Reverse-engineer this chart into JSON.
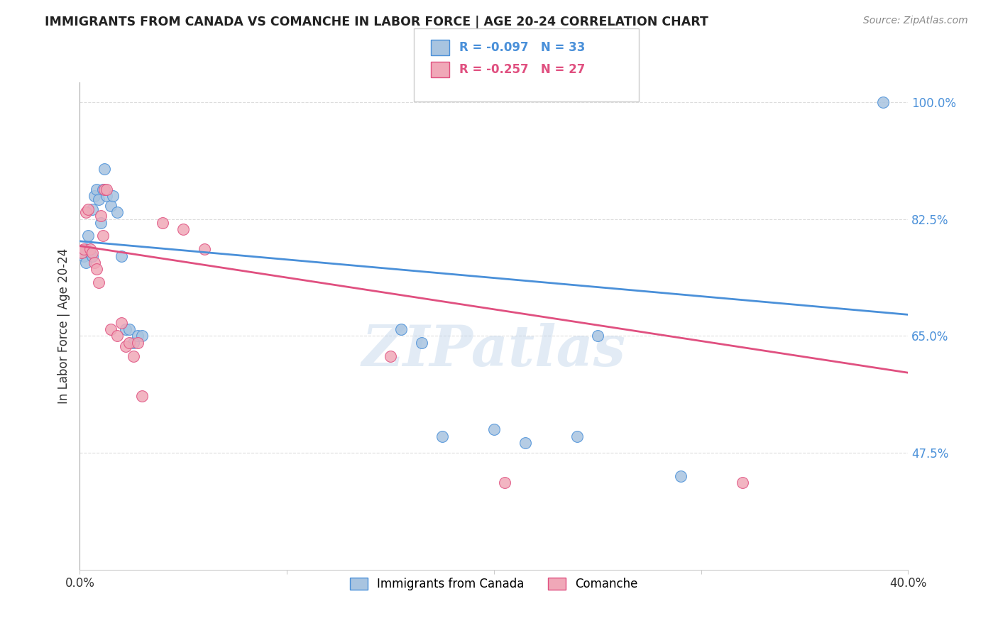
{
  "title": "IMMIGRANTS FROM CANADA VS COMANCHE IN LABOR FORCE | AGE 20-24 CORRELATION CHART",
  "source": "Source: ZipAtlas.com",
  "ylabel": "In Labor Force | Age 20-24",
  "xlim": [
    0.0,
    0.4
  ],
  "ylim": [
    0.3,
    1.03
  ],
  "x_tick_positions": [
    0.0,
    0.1,
    0.2,
    0.3,
    0.4
  ],
  "x_tick_labels": [
    "0.0%",
    "",
    "",
    "",
    "40.0%"
  ],
  "y_ticks": [
    0.475,
    0.65,
    0.825,
    1.0
  ],
  "y_tick_labels": [
    "47.5%",
    "65.0%",
    "82.5%",
    "100.0%"
  ],
  "blue_R": -0.097,
  "blue_N": 33,
  "pink_R": -0.257,
  "pink_N": 27,
  "blue_color": "#a8c4e0",
  "pink_color": "#f0a8b8",
  "blue_line_color": "#4a90d9",
  "pink_line_color": "#e05080",
  "legend_blue_label": "Immigrants from Canada",
  "legend_pink_label": "Comanche",
  "watermark": "ZIPatlas",
  "blue_line_y0": 0.792,
  "blue_line_y1": 0.682,
  "pink_line_y0": 0.785,
  "pink_line_y1": 0.595,
  "blue_x": [
    0.001,
    0.002,
    0.003,
    0.003,
    0.004,
    0.005,
    0.006,
    0.006,
    0.007,
    0.008,
    0.009,
    0.01,
    0.011,
    0.012,
    0.013,
    0.015,
    0.016,
    0.018,
    0.02,
    0.022,
    0.024,
    0.026,
    0.028,
    0.03,
    0.155,
    0.165,
    0.175,
    0.2,
    0.215,
    0.24,
    0.25,
    0.29,
    0.388
  ],
  "blue_y": [
    0.775,
    0.77,
    0.78,
    0.76,
    0.8,
    0.775,
    0.77,
    0.84,
    0.86,
    0.87,
    0.855,
    0.82,
    0.87,
    0.9,
    0.86,
    0.845,
    0.86,
    0.835,
    0.77,
    0.66,
    0.66,
    0.64,
    0.65,
    0.65,
    0.66,
    0.64,
    0.5,
    0.51,
    0.49,
    0.5,
    0.65,
    0.44,
    1.0
  ],
  "pink_x": [
    0.001,
    0.002,
    0.003,
    0.004,
    0.005,
    0.006,
    0.007,
    0.008,
    0.009,
    0.01,
    0.011,
    0.012,
    0.013,
    0.015,
    0.018,
    0.02,
    0.022,
    0.024,
    0.026,
    0.028,
    0.03,
    0.04,
    0.05,
    0.06,
    0.15,
    0.205,
    0.32
  ],
  "pink_y": [
    0.775,
    0.78,
    0.835,
    0.84,
    0.78,
    0.775,
    0.76,
    0.75,
    0.73,
    0.83,
    0.8,
    0.87,
    0.87,
    0.66,
    0.65,
    0.67,
    0.635,
    0.64,
    0.62,
    0.64,
    0.56,
    0.82,
    0.81,
    0.78,
    0.62,
    0.43,
    0.43
  ],
  "background_color": "#ffffff",
  "grid_color": "#dddddd"
}
